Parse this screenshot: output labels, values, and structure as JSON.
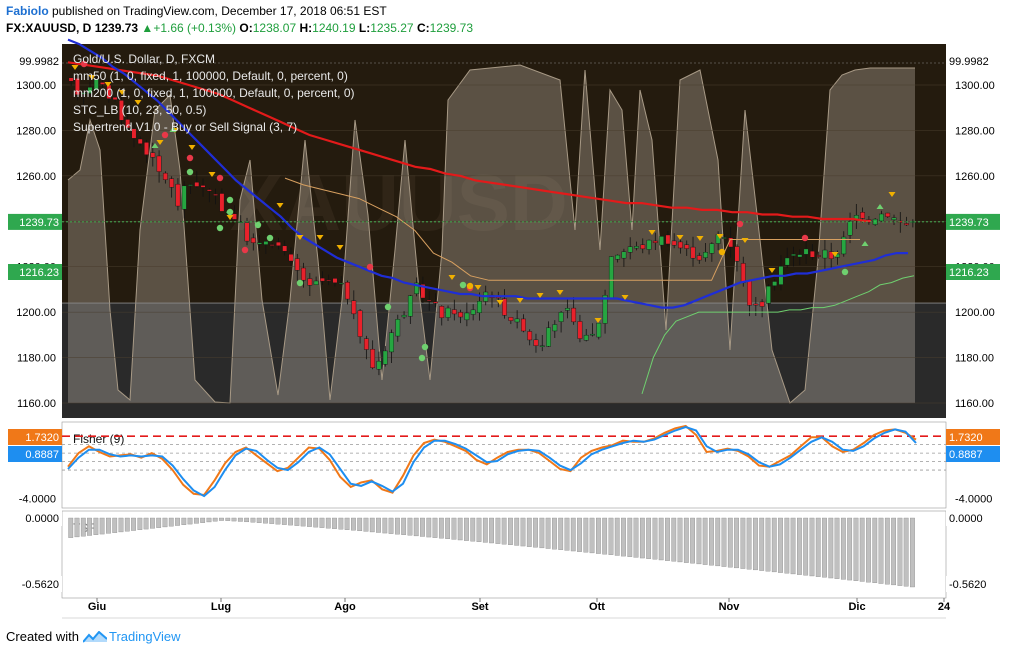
{
  "header": {
    "user": "Fabiolo",
    "published": " published on TradingView.com, December 17, 2018 06:51 EST",
    "symbol": "FX:XAUUSD, D",
    "last": "1239.73",
    "change": "+1.66 (+0.13%)",
    "open_label": "O:",
    "open": "1238.07",
    "high_label": "H:",
    "high": "1240.19",
    "low_label": "L:",
    "low": "1235.27",
    "close_label": "C:",
    "close": "1239.73"
  },
  "footer": {
    "created_with": "Created with",
    "brand": "TradingView"
  },
  "watermark": "XAUUSD",
  "colors": {
    "up_candle": "#26a641",
    "down_candle": "#e8212b",
    "ma50": "#1f2ed6",
    "ma200": "#e31a1a",
    "fisher_main": "#f07818",
    "fisher_signal": "#1e8ef0",
    "stc_fill": "#e8e0d0",
    "supertrend_up": "#6fd06f",
    "supertrend_down": "#d8a060",
    "buy_signal": "#f0b000",
    "sell_signal": "#e83848",
    "tsf_bars": "#c0c0c0"
  },
  "chart_data": [
    {
      "type": "candlestick",
      "title": "Gold/U.S. Dollar, D, FXCM",
      "legend": [
        "Gold/U.S. Dollar, D, FXCM",
        "mm50 (1, 0, fixed, 1, 100000, Default, 0, percent, 0)",
        "mm200 (1, 0, fixed, 1, 100000, Default, 0, percent, 0)",
        "STC_LB (10, 23, 50, 0.5)",
        "Supertrend V1.0 - Buy or Sell Signal (3, 7)"
      ],
      "x_ticks": [
        "Giu",
        "Lug",
        "Ago",
        "Set",
        "Ott",
        "Nov",
        "Dic",
        "24"
      ],
      "y_ticks": [
        "1300.00",
        "1280.00",
        "1260.00",
        "1240.00",
        "1220.00",
        "1200.00",
        "1180.00",
        "1160.00"
      ],
      "ylim": [
        1157,
        1303
      ],
      "price_labels": {
        "top": "99.9982",
        "current": "1239.73",
        "ma50": "1216.23"
      },
      "close_path": [
        1300,
        1296,
        1300,
        1302,
        1296,
        1293,
        1283,
        1277,
        1274,
        1268,
        1261,
        1258,
        1247,
        1256,
        1257,
        1254,
        1251,
        1246,
        1244,
        1239,
        1232,
        1228,
        1232,
        1231,
        1226,
        1220,
        1216,
        1210,
        1214,
        1213,
        1212,
        1210,
        1196,
        1186,
        1176,
        1180,
        1190,
        1197,
        1203,
        1211,
        1206,
        1203,
        1198,
        1202,
        1197,
        1200,
        1205,
        1210,
        1206,
        1200,
        1196,
        1194,
        1187,
        1186,
        1192,
        1198,
        1200,
        1192,
        1188,
        1190,
        1201,
        1226,
        1226,
        1229,
        1228,
        1230,
        1232,
        1233,
        1230,
        1228,
        1226,
        1224,
        1227,
        1234,
        1233,
        1226,
        1210,
        1201,
        1204,
        1212,
        1220,
        1224,
        1226,
        1227,
        1225,
        1226,
        1224,
        1230,
        1240,
        1244,
        1241,
        1243,
        1244,
        1241,
        1238,
        1240
      ],
      "ma50": [
        1320,
        1318,
        1315,
        1312,
        1308,
        1305,
        1301,
        1297,
        1293,
        1288,
        1283,
        1278,
        1273,
        1268,
        1263,
        1258,
        1254,
        1250,
        1246,
        1242,
        1237,
        1233,
        1230,
        1227,
        1224,
        1222,
        1220,
        1218,
        1216,
        1215,
        1213,
        1212,
        1211,
        1210,
        1209,
        1208,
        1208,
        1207,
        1207,
        1207,
        1207,
        1206,
        1206,
        1206,
        1206,
        1206,
        1206,
        1206,
        1206,
        1206,
        1205,
        1204,
        1203,
        1202,
        1202,
        1203,
        1205,
        1207,
        1209,
        1211,
        1213,
        1214,
        1215,
        1216,
        1216,
        1217,
        1217,
        1218,
        1219,
        1220,
        1221,
        1222,
        1223,
        1225,
        1226,
        1226
      ],
      "ma200": [
        1310,
        1309,
        1308,
        1307,
        1306,
        1305,
        1304,
        1302,
        1300,
        1298,
        1296,
        1293,
        1290,
        1287,
        1284,
        1281,
        1278,
        1276,
        1274,
        1272,
        1270,
        1268,
        1266,
        1264,
        1263,
        1261,
        1260,
        1258,
        1257,
        1256,
        1255,
        1254,
        1253,
        1252,
        1251,
        1250,
        1249,
        1248,
        1248,
        1247,
        1246,
        1246,
        1245,
        1245,
        1244,
        1244,
        1243,
        1243,
        1242,
        1242,
        1241,
        1241,
        1241,
        1240
      ],
      "supertrend_down_path": [
        1259,
        1256,
        1254,
        1252,
        1250,
        1246,
        1242,
        1236,
        1226,
        1222,
        1216,
        1214,
        1214,
        1214,
        1214,
        1214,
        1214,
        1214,
        1214,
        1214,
        1214,
        1214,
        1214,
        1214,
        1232,
        1232,
        1232,
        1232,
        1232,
        1232,
        1232,
        1232
      ],
      "supertrend_up_path": [
        1164,
        1180,
        1190,
        1196,
        1198,
        1200,
        1200,
        1200,
        1200,
        1200,
        1200,
        1200,
        1200,
        1201,
        1201,
        1202,
        1202,
        1203,
        1205,
        1207,
        1209,
        1212,
        1213,
        1215,
        1216
      ]
    },
    {
      "type": "line",
      "title": "Fisher (9)",
      "y_ticks": [
        "0.0000",
        "-4.0000"
      ],
      "ylim": [
        -4.5,
        2.4
      ],
      "levels": [
        1.5,
        0.75,
        0,
        -0.75,
        -1.5
      ],
      "price_labels": {
        "fisher": "1.7320",
        "signal": "0.8887"
      },
      "series": [
        {
          "values": [
            -1.2,
            0.0,
            0.6,
            0.1,
            -0.3,
            -0.2,
            -0.1,
            -0.4,
            0.0,
            -0.5,
            -1.5,
            -2.8,
            -3.6,
            -3.7,
            -2.4,
            -0.9,
            0.1,
            0.5,
            -0.2,
            -0.9,
            -1.6,
            -1.3,
            -0.4,
            0.5,
            0.4,
            -0.6,
            -2.1,
            -3.0,
            -2.6,
            -2.4,
            -3.2,
            -3.5,
            -2.0,
            -0.2,
            0.9,
            1.2,
            1.0,
            0.6,
            0.2,
            -0.6,
            -1.0,
            -0.4,
            0.1,
            0.3,
            0.3,
            0.0,
            -0.7,
            -1.4,
            -1.6,
            -0.4,
            0.2,
            0.5,
            0.7,
            1.1,
            1.0,
            1.0,
            1.3,
            1.8,
            2.2,
            2.4,
            1.6,
            0.1,
            0.2,
            0.4,
            0.2,
            -0.3,
            -1.1,
            -1.2,
            -0.7,
            -0.2,
            0.6,
            1.4,
            1.4,
            0.6,
            0.1,
            0.3,
            0.9,
            1.6,
            2.0,
            2.1,
            1.8,
            1.2
          ]
        },
        {
          "values": [
            -1.4,
            -0.4,
            0.3,
            0.3,
            -0.1,
            -0.3,
            -0.2,
            -0.3,
            -0.2,
            -0.3,
            -1.1,
            -2.3,
            -3.3,
            -3.8,
            -3.0,
            -1.5,
            -0.2,
            0.4,
            0.2,
            -0.6,
            -1.3,
            -1.5,
            -0.8,
            0.1,
            0.5,
            -0.1,
            -1.4,
            -2.7,
            -2.9,
            -2.5,
            -2.9,
            -3.4,
            -2.7,
            -0.8,
            0.5,
            1.1,
            1.1,
            0.8,
            0.4,
            -0.2,
            -0.8,
            -0.7,
            -0.1,
            0.2,
            0.3,
            0.2,
            -0.4,
            -1.1,
            -1.5,
            -0.9,
            -0.1,
            0.3,
            0.6,
            0.9,
            1.1,
            1.0,
            1.2,
            1.6,
            2.0,
            2.3,
            2.0,
            0.6,
            0.1,
            0.3,
            0.3,
            -0.1,
            -0.8,
            -1.2,
            -1.0,
            -0.4,
            0.3,
            1.0,
            1.4,
            1.0,
            0.3,
            0.2,
            0.6,
            1.3,
            1.8,
            2.1,
            1.9,
            0.9
          ]
        }
      ]
    },
    {
      "type": "bar",
      "title": "TSF",
      "y_ticks": [
        "0.0000",
        "-0.5620"
      ],
      "ylim": [
        -0.562,
        0
      ],
      "values_start": -0.16,
      "values_mid": -0.02,
      "values_end": -0.562
    }
  ]
}
